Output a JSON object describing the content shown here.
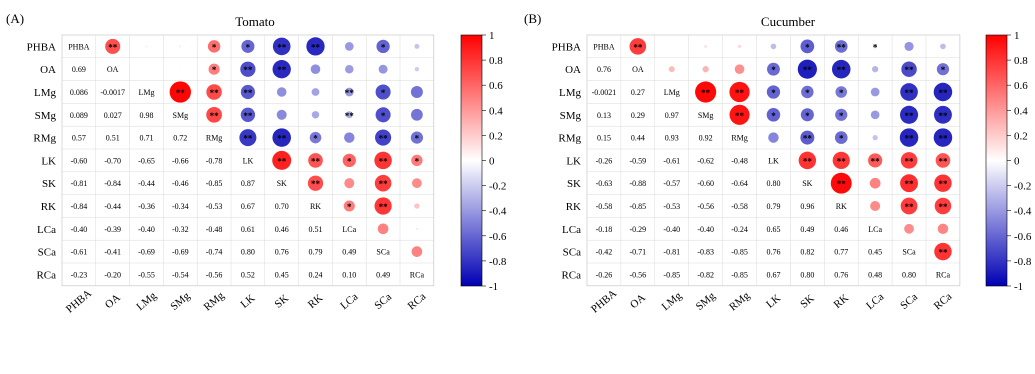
{
  "chart_data": [
    {
      "type": "heatmap",
      "panel_label": "(A)",
      "title": "Tomato",
      "variables": [
        "PHBA",
        "OA",
        "LMg",
        "SMg",
        "RMg",
        "LK",
        "SK",
        "RK",
        "LCa",
        "SCa",
        "RCa"
      ],
      "lower_triangle_values": [
        [
          0.69
        ],
        [
          0.086,
          -0.0017
        ],
        [
          0.089,
          0.027,
          0.98
        ],
        [
          0.57,
          0.51,
          0.71,
          0.72
        ],
        [
          -0.6,
          -0.7,
          -0.65,
          -0.66,
          -0.78
        ],
        [
          -0.81,
          -0.84,
          -0.44,
          -0.46,
          -0.85,
          0.87
        ],
        [
          -0.84,
          -0.44,
          -0.36,
          -0.34,
          -0.53,
          0.67,
          0.7
        ],
        [
          -0.4,
          -0.39,
          -0.4,
          -0.32,
          -0.48,
          0.61,
          0.46,
          0.51
        ],
        [
          -0.61,
          -0.41,
          -0.69,
          -0.69,
          -0.74,
          0.8,
          0.76,
          0.79,
          0.49
        ],
        [
          -0.23,
          -0.2,
          -0.55,
          -0.54,
          -0.56,
          0.52,
          0.45,
          0.24,
          0.1,
          0.49
        ]
      ],
      "lower_triangle_labels": [
        [
          "0.69"
        ],
        [
          "0.086",
          "-0.0017"
        ],
        [
          "0.089",
          "0.027",
          "0.98"
        ],
        [
          "0.57",
          "0.51",
          "0.71",
          "0.72"
        ],
        [
          "-0.60",
          "-0.70",
          "-0.65",
          "-0.66",
          "-0.78"
        ],
        [
          "-0.81",
          "-0.84",
          "-0.44",
          "-0.46",
          "-0.85",
          "0.87"
        ],
        [
          "-0.84",
          "-0.44",
          "-0.36",
          "-0.34",
          "-0.53",
          "0.67",
          "0.70"
        ],
        [
          "-0.40",
          "-0.39",
          "-0.40",
          "-0.32",
          "-0.48",
          "0.61",
          "0.46",
          "0.51"
        ],
        [
          "-0.61",
          "-0.41",
          "-0.69",
          "-0.69",
          "-0.74",
          "0.80",
          "0.76",
          "0.79",
          "0.49"
        ],
        [
          "-0.23",
          "-0.20",
          "-0.55",
          "-0.54",
          "-0.56",
          "0.52",
          "0.45",
          "0.24",
          "0.10",
          "0.49"
        ]
      ],
      "significance_upper": [
        [
          "**",
          "",
          "",
          "*",
          "*",
          "**",
          "**",
          "",
          "*",
          ""
        ],
        [
          "",
          "",
          "*",
          "**",
          "**",
          "",
          "",
          ""
        ],
        [
          "**",
          "**",
          "**",
          "",
          "",
          "**",
          "*"
        ],
        [
          "**",
          "**",
          "",
          "",
          "**",
          "*"
        ],
        [
          "**",
          "**",
          "*",
          "",
          "**",
          "*"
        ],
        [
          "**",
          "**",
          "*",
          "**",
          "*"
        ],
        [
          "**",
          "",
          "**",
          ""
        ],
        [
          "*",
          "**",
          ""
        ],
        [
          "",
          ""
        ],
        [
          ""
        ]
      ],
      "colorbar": {
        "ticks": [
          "1",
          "0.8",
          "0.6",
          "0.4",
          "0.2",
          "0",
          "-0.2",
          "-0.4",
          "-0.6",
          "-0.8",
          "-1"
        ],
        "range": [
          -1,
          1
        ]
      }
    },
    {
      "type": "heatmap",
      "panel_label": "(B)",
      "title": "Cucumber",
      "variables": [
        "PHBA",
        "OA",
        "LMg",
        "SMg",
        "RMg",
        "LK",
        "SK",
        "RK",
        "LCa",
        "SCa",
        "RCa"
      ],
      "lower_triangle_values": [
        [
          0.76
        ],
        [
          -0.0021,
          0.27
        ],
        [
          0.13,
          0.29,
          0.97
        ],
        [
          0.15,
          0.44,
          0.93,
          0.92
        ],
        [
          -0.26,
          -0.59,
          -0.61,
          -0.62,
          -0.48
        ],
        [
          -0.63,
          -0.88,
          -0.57,
          -0.6,
          -0.64,
          0.8
        ],
        [
          -0.58,
          -0.85,
          -0.53,
          -0.56,
          -0.58,
          0.79,
          0.96
        ],
        [
          -0.18,
          -0.29,
          -0.4,
          -0.4,
          -0.24,
          0.65,
          0.49,
          0.46
        ],
        [
          -0.42,
          -0.71,
          -0.81,
          -0.83,
          -0.85,
          0.76,
          0.82,
          0.77,
          0.45
        ],
        [
          -0.26,
          -0.56,
          -0.85,
          -0.82,
          -0.85,
          0.67,
          0.8,
          0.76,
          0.48,
          0.8
        ]
      ],
      "lower_triangle_labels": [
        [
          "0.76"
        ],
        [
          "-0.0021",
          "0.27"
        ],
        [
          "0.13",
          "0.29",
          "0.97"
        ],
        [
          "0.15",
          "0.44",
          "0.93",
          "0.92"
        ],
        [
          "-0.26",
          "-0.59",
          "-0.61",
          "-0.62",
          "-0.48"
        ],
        [
          "-0.63",
          "-0.88",
          "-0.57",
          "-0.60",
          "-0.64",
          "0.80"
        ],
        [
          "-0.58",
          "-0.85",
          "-0.53",
          "-0.56",
          "-0.58",
          "0.79",
          "0.96"
        ],
        [
          "-0.18",
          "-0.29",
          "-0.40",
          "-0.40",
          "-0.24",
          "0.65",
          "0.49",
          "0.46"
        ],
        [
          "-0.42",
          "-0.71",
          "-0.81",
          "-0.83",
          "-0.85",
          "0.76",
          "0.82",
          "0.77",
          "0.45"
        ],
        [
          "-0.26",
          "-0.56",
          "-0.85",
          "-0.82",
          "-0.85",
          "0.67",
          "0.80",
          "0.76",
          "0.48",
          "0.80"
        ]
      ],
      "significance_upper": [
        [
          "**",
          "",
          "",
          "",
          "",
          "*",
          "**",
          "*",
          "",
          ""
        ],
        [
          "",
          "",
          "",
          "*",
          "**",
          "**",
          "",
          "**",
          "*"
        ],
        [
          "**",
          "**",
          "*",
          "*",
          "*",
          "",
          "**",
          "**"
        ],
        [
          "**",
          "*",
          "*",
          "*",
          "",
          "**",
          "**"
        ],
        [
          "",
          "**",
          "*",
          "",
          "**",
          "**"
        ],
        [
          "**",
          "**",
          "**",
          "**",
          "**"
        ],
        [
          "**",
          "",
          "**",
          "**"
        ],
        [
          "",
          "**",
          "**"
        ],
        [
          "",
          ""
        ],
        [
          "**"
        ]
      ],
      "colorbar": {
        "ticks": [
          "1",
          "0.8",
          "0.6",
          "0.4",
          "0.2",
          "0",
          "-0.2",
          "-0.4",
          "-0.6",
          "-0.8",
          "-1"
        ],
        "range": [
          -1,
          1
        ]
      }
    }
  ]
}
